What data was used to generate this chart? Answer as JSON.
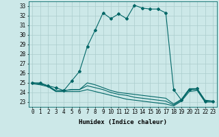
{
  "xlabel": "Humidex (Indice chaleur)",
  "bg_color": "#cce8e8",
  "grid_color": "#aacccc",
  "line_color": "#006666",
  "xlim": [
    -0.5,
    23.5
  ],
  "ylim": [
    22.5,
    33.5
  ],
  "yticks": [
    23,
    24,
    25,
    26,
    27,
    28,
    29,
    30,
    31,
    32,
    33
  ],
  "xticks": [
    0,
    1,
    2,
    3,
    4,
    5,
    6,
    7,
    8,
    9,
    10,
    11,
    12,
    13,
    14,
    15,
    16,
    17,
    18,
    19,
    20,
    21,
    22,
    23
  ],
  "series": [
    [
      25.0,
      25.0,
      24.7,
      24.5,
      24.2,
      25.2,
      26.2,
      28.8,
      30.5,
      32.3,
      31.7,
      32.2,
      31.7,
      33.1,
      32.8,
      32.7,
      32.7,
      32.3,
      24.3,
      23.2,
      24.3,
      24.4,
      23.1,
      23.1
    ],
    [
      25.0,
      24.9,
      24.7,
      24.1,
      24.2,
      24.3,
      24.3,
      25.0,
      24.8,
      24.5,
      24.2,
      24.0,
      23.9,
      23.8,
      23.7,
      23.6,
      23.5,
      23.4,
      22.8,
      23.3,
      24.4,
      24.4,
      23.2,
      23.1
    ],
    [
      25.0,
      24.9,
      24.7,
      24.2,
      24.2,
      24.3,
      24.3,
      24.7,
      24.5,
      24.3,
      24.0,
      23.8,
      23.7,
      23.5,
      23.4,
      23.3,
      23.2,
      23.1,
      22.7,
      23.2,
      24.3,
      24.3,
      23.1,
      23.1
    ],
    [
      24.9,
      24.8,
      24.6,
      24.1,
      24.1,
      24.1,
      24.1,
      24.3,
      24.1,
      23.9,
      23.7,
      23.5,
      23.3,
      23.2,
      23.1,
      23.0,
      22.9,
      22.8,
      22.6,
      23.1,
      24.1,
      24.2,
      23.0,
      23.0
    ]
  ],
  "marker_series": 0,
  "marker": "D",
  "markersize": 2.0,
  "linewidth": 0.8,
  "tick_fontsize": 5.5,
  "label_fontsize": 6.5
}
